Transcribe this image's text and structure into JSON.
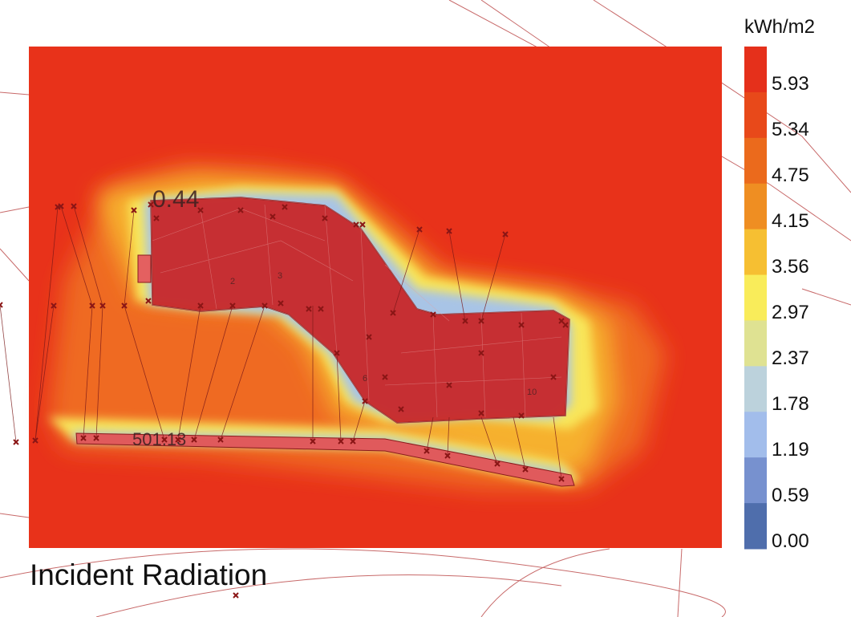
{
  "title": "Incident Radiation",
  "legend": {
    "unit": "kWh/m2",
    "ticks": [
      "5.93",
      "5.34",
      "4.75",
      "4.15",
      "3.56",
      "2.97",
      "2.37",
      "1.78",
      "1.19",
      "0.59",
      "0.00"
    ],
    "colors": [
      "#e5301b",
      "#e8491a",
      "#eb6a1c",
      "#ef8e22",
      "#f6bf32",
      "#f9ec5a",
      "#dfe292",
      "#bcd2dc",
      "#a2bdeb",
      "#7791cf",
      "#4f6eac"
    ]
  },
  "map_labels": {
    "elevation_top": "0.44",
    "elevation_bottom": "501.13",
    "building_numbers": [
      "2",
      "3",
      "6",
      "10"
    ]
  },
  "chart_data": {
    "type": "heatmap",
    "title": "Incident Radiation",
    "value_unit": "kWh/m2",
    "scale_ticks": [
      5.93,
      5.34,
      4.75,
      4.15,
      3.56,
      2.97,
      2.37,
      1.78,
      1.19,
      0.59,
      0.0
    ],
    "scale_range": [
      0.0,
      5.93
    ]
  }
}
